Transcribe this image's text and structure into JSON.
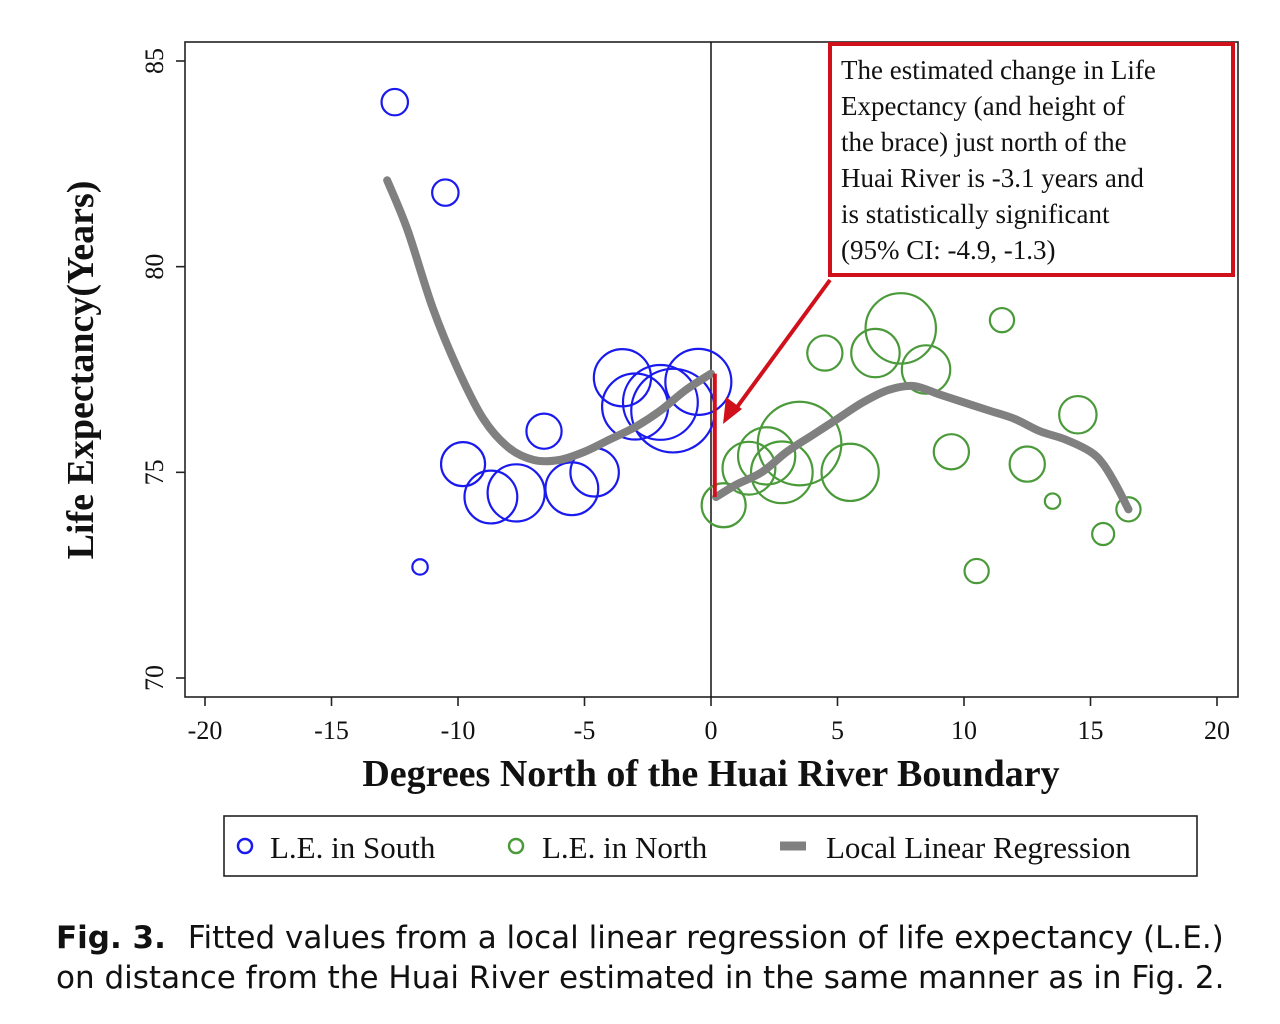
{
  "caption": {
    "label": "Fig. 3.",
    "text": "Fitted values from a local linear regression of life expectancy (L.E.) on distance from the Huai River estimated in the same manner as in Fig. 2."
  },
  "annotation": {
    "lines": [
      "The estimated change in Life",
      "Expectancy (and height of",
      "the brace) just north of the",
      "Huai River is -3.1 years and",
      "is statistically significant",
      "(95% CI: -4.9, -1.3)"
    ],
    "color": "#d0101a"
  },
  "chart_data": {
    "type": "scatter",
    "xlabel": "Degrees North of the Huai River Boundary",
    "ylabel": "Life Expectancy(Years)",
    "xlim": [
      -20,
      20
    ],
    "ylim": [
      70,
      85
    ],
    "xticks": [
      -20,
      -15,
      -10,
      -5,
      0,
      5,
      10,
      15,
      20
    ],
    "yticks": [
      70,
      75,
      80,
      85
    ],
    "grid": false,
    "legend_position": "bottom",
    "boundary_x": 0,
    "series": [
      {
        "name": "L.E. in South",
        "kind": "bubble",
        "color": "#1a1aee",
        "points": [
          {
            "x": -12.5,
            "y": 84.0,
            "size": 0.6
          },
          {
            "x": -10.5,
            "y": 81.8,
            "size": 0.6
          },
          {
            "x": -11.5,
            "y": 72.7,
            "size": 0.35
          },
          {
            "x": -9.8,
            "y": 75.2,
            "size": 1.0
          },
          {
            "x": -8.7,
            "y": 74.4,
            "size": 1.2
          },
          {
            "x": -7.7,
            "y": 74.5,
            "size": 1.3
          },
          {
            "x": -6.6,
            "y": 76.0,
            "size": 0.8
          },
          {
            "x": -5.5,
            "y": 74.6,
            "size": 1.2
          },
          {
            "x": -4.6,
            "y": 75.0,
            "size": 1.1
          },
          {
            "x": -3.5,
            "y": 77.3,
            "size": 1.3
          },
          {
            "x": -3.0,
            "y": 76.6,
            "size": 1.5
          },
          {
            "x": -2.0,
            "y": 76.7,
            "size": 1.7
          },
          {
            "x": -1.5,
            "y": 76.5,
            "size": 1.9
          },
          {
            "x": -0.5,
            "y": 77.2,
            "size": 1.5
          }
        ]
      },
      {
        "name": "L.E. in North",
        "kind": "bubble",
        "color": "#4a9a3a",
        "points": [
          {
            "x": 0.5,
            "y": 74.2,
            "size": 1.0
          },
          {
            "x": 1.5,
            "y": 75.1,
            "size": 1.2
          },
          {
            "x": 2.2,
            "y": 75.4,
            "size": 1.3
          },
          {
            "x": 2.8,
            "y": 75.0,
            "size": 1.4
          },
          {
            "x": 3.5,
            "y": 75.7,
            "size": 1.9
          },
          {
            "x": 4.5,
            "y": 77.9,
            "size": 0.8
          },
          {
            "x": 5.5,
            "y": 75.0,
            "size": 1.3
          },
          {
            "x": 6.5,
            "y": 77.9,
            "size": 1.1
          },
          {
            "x": 7.5,
            "y": 78.5,
            "size": 1.6
          },
          {
            "x": 8.5,
            "y": 77.5,
            "size": 1.1
          },
          {
            "x": 9.5,
            "y": 75.5,
            "size": 0.8
          },
          {
            "x": 10.5,
            "y": 72.6,
            "size": 0.55
          },
          {
            "x": 11.5,
            "y": 78.7,
            "size": 0.55
          },
          {
            "x": 12.5,
            "y": 75.2,
            "size": 0.8
          },
          {
            "x": 13.5,
            "y": 74.3,
            "size": 0.35
          },
          {
            "x": 14.5,
            "y": 76.4,
            "size": 0.85
          },
          {
            "x": 15.5,
            "y": 73.5,
            "size": 0.5
          },
          {
            "x": 16.5,
            "y": 74.1,
            "size": 0.55
          }
        ]
      },
      {
        "name": "Local Linear Regression",
        "kind": "line",
        "color": "#808080",
        "segments": [
          [
            {
              "x": -12.8,
              "y": 82.1
            },
            {
              "x": -12.0,
              "y": 80.9
            },
            {
              "x": -11.0,
              "y": 79.0
            },
            {
              "x": -10.0,
              "y": 77.5
            },
            {
              "x": -9.0,
              "y": 76.3
            },
            {
              "x": -8.0,
              "y": 75.6
            },
            {
              "x": -7.0,
              "y": 75.3
            },
            {
              "x": -6.0,
              "y": 75.3
            },
            {
              "x": -5.0,
              "y": 75.5
            },
            {
              "x": -4.0,
              "y": 75.8
            },
            {
              "x": -3.0,
              "y": 76.1
            },
            {
              "x": -2.0,
              "y": 76.5
            },
            {
              "x": -1.0,
              "y": 77.0
            },
            {
              "x": 0.0,
              "y": 77.4
            }
          ],
          [
            {
              "x": 0.2,
              "y": 74.4
            },
            {
              "x": 1.0,
              "y": 74.7
            },
            {
              "x": 2.0,
              "y": 75.0
            },
            {
              "x": 3.0,
              "y": 75.5
            },
            {
              "x": 4.0,
              "y": 75.9
            },
            {
              "x": 5.0,
              "y": 76.3
            },
            {
              "x": 6.0,
              "y": 76.7
            },
            {
              "x": 7.0,
              "y": 77.0
            },
            {
              "x": 8.0,
              "y": 77.1
            },
            {
              "x": 9.0,
              "y": 76.9
            },
            {
              "x": 10.0,
              "y": 76.7
            },
            {
              "x": 11.0,
              "y": 76.5
            },
            {
              "x": 12.0,
              "y": 76.3
            },
            {
              "x": 13.0,
              "y": 76.0
            },
            {
              "x": 14.0,
              "y": 75.8
            },
            {
              "x": 15.0,
              "y": 75.5
            },
            {
              "x": 15.5,
              "y": 75.2
            },
            {
              "x": 16.0,
              "y": 74.7
            },
            {
              "x": 16.5,
              "y": 74.1
            }
          ]
        ]
      }
    ],
    "brace": {
      "x": 0.15,
      "y_from": 74.4,
      "y_to": 77.4,
      "color": "#d0101a"
    }
  }
}
